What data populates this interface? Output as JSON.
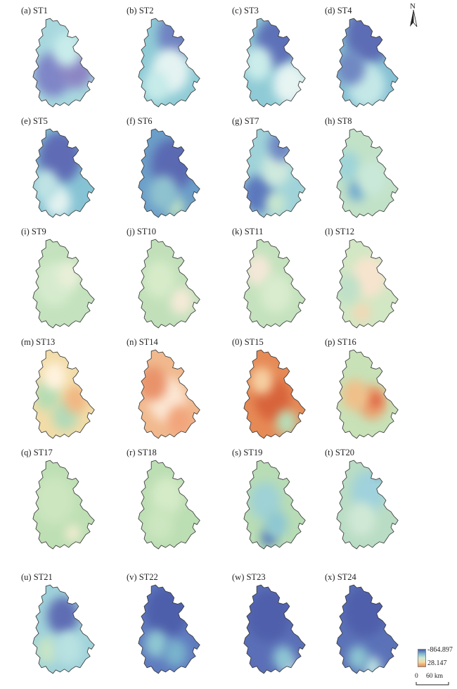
{
  "panels": [
    {
      "label": "(a) ST1",
      "base": "#a8d8de",
      "blobs": [
        [
          "#7f86c8",
          0.38,
          0.62,
          0.26
        ],
        [
          "#8c86c4",
          0.7,
          0.55,
          0.24
        ],
        [
          "#c8ecea",
          0.58,
          0.35,
          0.2
        ]
      ]
    },
    {
      "label": "(b) ST2",
      "base": "#8fcbd6",
      "blobs": [
        [
          "#6f83c2",
          0.65,
          0.2,
          0.28
        ],
        [
          "#e4f3f1",
          0.55,
          0.58,
          0.26
        ],
        [
          "#c6ebe9",
          0.35,
          0.75,
          0.18
        ]
      ]
    },
    {
      "label": "(c) ST3",
      "base": "#8fcbd6",
      "blobs": [
        [
          "#5d71b8",
          0.56,
          0.28,
          0.3
        ],
        [
          "#e6f4f2",
          0.75,
          0.72,
          0.24
        ],
        [
          "#cbecea",
          0.3,
          0.5,
          0.2
        ]
      ]
    },
    {
      "label": "(d) ST4",
      "base": "#84bfd3",
      "blobs": [
        [
          "#5d6db5",
          0.55,
          0.2,
          0.33
        ],
        [
          "#c5e8e7",
          0.52,
          0.74,
          0.26
        ],
        [
          "#7188c3",
          0.3,
          0.55,
          0.2
        ]
      ]
    },
    {
      "label": "(e) ST5",
      "base": "#86c3d4",
      "blobs": [
        [
          "#5e6cb5",
          0.48,
          0.32,
          0.3
        ],
        [
          "#e2f2f0",
          0.45,
          0.8,
          0.18
        ],
        [
          "#bfe3e4",
          0.28,
          0.62,
          0.18
        ]
      ]
    },
    {
      "label": "(f) ST6",
      "base": "#6c9fc9",
      "blobs": [
        [
          "#5a69b2",
          0.58,
          0.4,
          0.3
        ],
        [
          "#bde0c2",
          0.62,
          0.86,
          0.12
        ],
        [
          "#8fc2cf",
          0.45,
          0.7,
          0.2
        ]
      ]
    },
    {
      "label": "(g) ST7",
      "base": "#9fd3d9",
      "blobs": [
        [
          "#5c78bd",
          0.3,
          0.72,
          0.22
        ],
        [
          "#cfe9dd",
          0.55,
          0.45,
          0.2
        ],
        [
          "#6f88c4",
          0.62,
          0.2,
          0.18
        ],
        [
          "#c8e6cf",
          0.55,
          0.82,
          0.14
        ]
      ]
    },
    {
      "label": "(h) ST8",
      "base": "#c2e2c8",
      "blobs": [
        [
          "#9fd4d8",
          0.25,
          0.42,
          0.18
        ],
        [
          "#6fa9cf",
          0.38,
          0.68,
          0.12
        ],
        [
          "#c9e8d9",
          0.6,
          0.55,
          0.2
        ]
      ]
    },
    {
      "label": "(i) ST9",
      "base": "#c3e2bd",
      "blobs": [
        [
          "#d6ebcd",
          0.4,
          0.5,
          0.26
        ],
        [
          "#e9efd8",
          0.6,
          0.4,
          0.16
        ]
      ]
    },
    {
      "label": "(j) ST10",
      "base": "#c1e0ba",
      "blobs": [
        [
          "#f4ead7",
          0.7,
          0.68,
          0.16
        ],
        [
          "#d7ebc9",
          0.4,
          0.45,
          0.22
        ]
      ]
    },
    {
      "label": "(k) ST11",
      "base": "#c4e2bd",
      "blobs": [
        [
          "#f4e8d8",
          0.3,
          0.35,
          0.18
        ],
        [
          "#d9ecce",
          0.55,
          0.6,
          0.22
        ]
      ]
    },
    {
      "label": "(l) ST12",
      "base": "#d2e7c4",
      "blobs": [
        [
          "#f7e4ce",
          0.55,
          0.42,
          0.24
        ],
        [
          "#f3d8b6",
          0.45,
          0.8,
          0.12
        ],
        [
          "#bfe0c8",
          0.25,
          0.55,
          0.18
        ]
      ]
    },
    {
      "label": "(m) ST13",
      "base": "#f2dca8",
      "blobs": [
        [
          "#b5dcb4",
          0.3,
          0.5,
          0.18
        ],
        [
          "#b2dab8",
          0.55,
          0.72,
          0.18
        ],
        [
          "#f1b783",
          0.7,
          0.55,
          0.16
        ],
        [
          "#fff3df",
          0.4,
          0.3,
          0.16
        ]
      ]
    },
    {
      "label": "(n) ST14",
      "base": "#f1b98e",
      "blobs": [
        [
          "#fbe6d3",
          0.5,
          0.55,
          0.26
        ],
        [
          "#e9936b",
          0.3,
          0.38,
          0.2
        ],
        [
          "#f2a57c",
          0.68,
          0.78,
          0.18
        ]
      ]
    },
    {
      "label": "(0) ST15",
      "base": "#e68a56",
      "blobs": [
        [
          "#d8643a",
          0.5,
          0.55,
          0.25
        ],
        [
          "#b8dcb6",
          0.7,
          0.8,
          0.15
        ],
        [
          "#f6cfa1",
          0.35,
          0.35,
          0.16
        ]
      ]
    },
    {
      "label": "(p) ST16",
      "base": "#c8e1b7",
      "blobs": [
        [
          "#eba16f",
          0.6,
          0.58,
          0.2
        ],
        [
          "#d9583a",
          0.64,
          0.56,
          0.08
        ],
        [
          "#f0c089",
          0.35,
          0.5,
          0.18
        ]
      ]
    },
    {
      "label": "(q) ST17",
      "base": "#bedfb4",
      "blobs": [
        [
          "#ccE6bf",
          0.4,
          0.45,
          0.28
        ],
        [
          "#f3edd3",
          0.66,
          0.8,
          0.1
        ]
      ]
    },
    {
      "label": "(r) ST18",
      "base": "#bcdeb3",
      "blobs": [
        [
          "#d5ebc8",
          0.5,
          0.4,
          0.22
        ],
        [
          "#cbe6c0",
          0.4,
          0.7,
          0.2
        ]
      ]
    },
    {
      "label": "(s) ST19",
      "base": "#b8dcb5",
      "blobs": [
        [
          "#9fd2d6",
          0.4,
          0.45,
          0.22
        ],
        [
          "#4f73b7",
          0.45,
          0.85,
          0.1
        ],
        [
          "#8ec7d3",
          0.55,
          0.7,
          0.16
        ]
      ]
    },
    {
      "label": "(t) ST20",
      "base": "#b9dcc4",
      "blobs": [
        [
          "#9fd2dc",
          0.55,
          0.35,
          0.24
        ],
        [
          "#4f6fb4",
          0.72,
          0.12,
          0.08
        ],
        [
          "#cfe8d6",
          0.45,
          0.65,
          0.2
        ]
      ]
    },
    {
      "label": "(u) ST21",
      "base": "#9fd2da",
      "blobs": [
        [
          "#5e6db4",
          0.52,
          0.35,
          0.22
        ],
        [
          "#c6e4c6",
          0.3,
          0.72,
          0.16
        ],
        [
          "#b8e1e1",
          0.6,
          0.7,
          0.2
        ]
      ]
    },
    {
      "label": "(v) ST22",
      "base": "#5f7bbf",
      "blobs": [
        [
          "#4e5fab",
          0.5,
          0.3,
          0.3
        ],
        [
          "#8fc7d2",
          0.35,
          0.65,
          0.16
        ],
        [
          "#79b3cc",
          0.62,
          0.75,
          0.16
        ]
      ]
    },
    {
      "label": "(w) ST23",
      "base": "#5a6fb7",
      "blobs": [
        [
          "#4f5fab",
          0.45,
          0.35,
          0.3
        ],
        [
          "#eef8f4",
          0.72,
          0.88,
          0.08
        ],
        [
          "#8dc7d3",
          0.65,
          0.8,
          0.14
        ]
      ]
    },
    {
      "label": "(x) ST24",
      "base": "#5b72b8",
      "blobs": [
        [
          "#4f5fab",
          0.5,
          0.3,
          0.3
        ],
        [
          "#bfe6e4",
          0.6,
          0.9,
          0.12
        ],
        [
          "#8cc6d2",
          0.4,
          0.8,
          0.14
        ]
      ]
    }
  ],
  "north_arrow": {
    "label": "N"
  },
  "legend": {
    "max_label": "-864.897",
    "min_label": "28.147",
    "colors": [
      "#4a5ba9",
      "#7fb7d0",
      "#cfe9d5",
      "#f4d7a0",
      "#e9884f"
    ]
  },
  "scale_bar": {
    "zero": "0",
    "text": "60 km"
  }
}
